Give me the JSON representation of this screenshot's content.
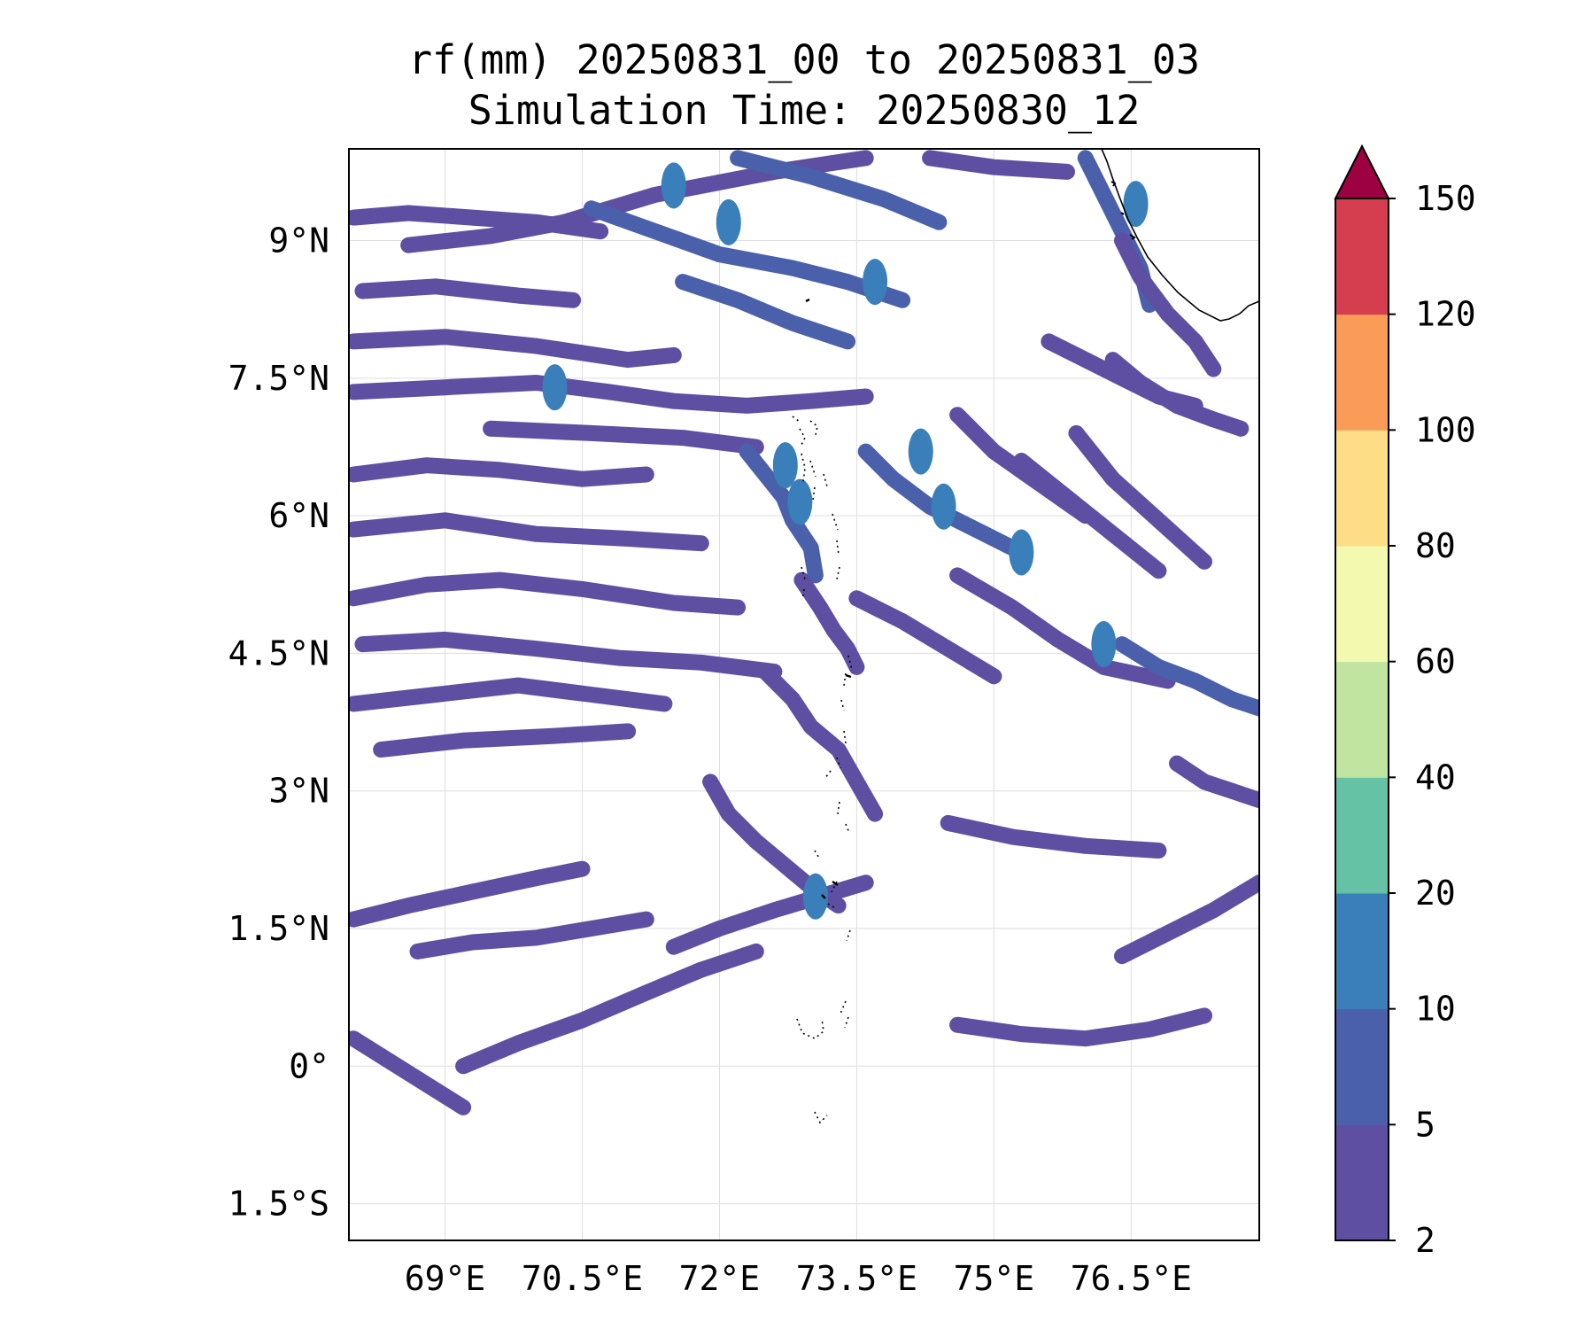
{
  "title": {
    "line1": "rf(mm) 20250831_00 to 20250831_03",
    "line2": "Simulation Time: 20250830_12"
  },
  "map": {
    "projection": "PlateCarree",
    "extent": {
      "lon_min": 67.95,
      "lon_max": 77.9,
      "lat_min": -1.9,
      "lat_max": 10.0
    },
    "gridlines": true,
    "coastline_color": "#000000",
    "x_ticks": [
      {
        "value": 69.0,
        "label": "69°E"
      },
      {
        "value": 70.5,
        "label": "70.5°E"
      },
      {
        "value": 72.0,
        "label": "72°E"
      },
      {
        "value": 73.5,
        "label": "73.5°E"
      },
      {
        "value": 75.0,
        "label": "75°E"
      },
      {
        "value": 76.5,
        "label": "76.5°E"
      }
    ],
    "y_ticks": [
      {
        "value": 9.0,
        "label": "9°N"
      },
      {
        "value": 7.5,
        "label": "7.5°N"
      },
      {
        "value": 6.0,
        "label": "6°N"
      },
      {
        "value": 4.5,
        "label": "4.5°N"
      },
      {
        "value": 3.0,
        "label": "3°N"
      },
      {
        "value": 1.5,
        "label": "1.5°N"
      },
      {
        "value": 0.0,
        "label": "0°"
      },
      {
        "value": -1.5,
        "label": "1.5°S"
      }
    ]
  },
  "chart_data": {
    "type": "heatmap",
    "variable": "rf(mm)",
    "colorbar": {
      "levels": [
        2,
        5,
        10,
        20,
        40,
        60,
        80,
        100,
        120,
        150
      ],
      "labels": [
        "2",
        "5",
        "10",
        "20",
        "40",
        "60",
        "80",
        "100",
        "120",
        "150"
      ],
      "colors": [
        "#5e4fa2",
        "#4a60ab",
        "#3a7fb9",
        "#66c2a5",
        "#bfe5a0",
        "#f3f9ae",
        "#fddd86",
        "#fa9c58",
        "#d53e4f"
      ],
      "extend_color": "#9e0142",
      "extend": "max"
    },
    "rain_streaks": [
      {
        "lon": [
          68.0,
          68.6,
          69.3,
          70.0,
          70.7
        ],
        "lat": [
          9.25,
          9.3,
          9.25,
          9.2,
          9.1
        ],
        "level": 0
      },
      {
        "lon": [
          68.6,
          69.5,
          70.3,
          71.3,
          72.6,
          73.6
        ],
        "lat": [
          8.95,
          9.05,
          9.2,
          9.5,
          9.75,
          9.9
        ],
        "level": 0
      },
      {
        "lon": [
          70.6,
          71.3,
          72.0,
          72.8,
          73.4,
          74.0
        ],
        "lat": [
          9.35,
          9.1,
          8.85,
          8.7,
          8.55,
          8.35
        ],
        "level": 1
      },
      {
        "lon": [
          72.2,
          73.0,
          73.8,
          74.4
        ],
        "lat": [
          9.9,
          9.7,
          9.45,
          9.2
        ],
        "level": 1
      },
      {
        "lon": [
          74.3,
          75.0,
          75.8
        ],
        "lat": [
          9.9,
          9.8,
          9.75
        ],
        "level": 0
      },
      {
        "lon": [
          71.6,
          72.2,
          72.8,
          73.4
        ],
        "lat": [
          8.55,
          8.35,
          8.1,
          7.9
        ],
        "level": 1
      },
      {
        "lon": [
          68.1,
          68.9,
          69.8,
          70.4
        ],
        "lat": [
          8.45,
          8.5,
          8.4,
          8.35
        ],
        "level": 0
      },
      {
        "lon": [
          68.0,
          69.0,
          70.0,
          71.0,
          71.5
        ],
        "lat": [
          7.9,
          7.95,
          7.85,
          7.7,
          7.75
        ],
        "level": 0
      },
      {
        "lon": [
          68.0,
          69.0,
          70.0,
          70.8,
          71.5,
          72.3,
          73.0,
          73.6
        ],
        "lat": [
          7.35,
          7.4,
          7.45,
          7.35,
          7.25,
          7.2,
          7.25,
          7.3
        ],
        "level": 0
      },
      {
        "lon": [
          69.5,
          70.6,
          71.6,
          72.4
        ],
        "lat": [
          6.95,
          6.9,
          6.85,
          6.75
        ],
        "level": 0
      },
      {
        "lon": [
          72.3,
          72.5,
          72.7,
          72.8,
          73.0,
          73.05
        ],
        "lat": [
          6.7,
          6.45,
          6.2,
          5.95,
          5.65,
          5.35
        ],
        "level": 1
      },
      {
        "lon": [
          72.9,
          73.1,
          73.25,
          73.4,
          73.5
        ],
        "lat": [
          5.3,
          5.0,
          4.75,
          4.55,
          4.35
        ],
        "level": 0
      },
      {
        "lon": [
          68.0,
          68.8,
          69.6,
          70.5,
          71.2
        ],
        "lat": [
          6.45,
          6.55,
          6.5,
          6.4,
          6.45
        ],
        "level": 0
      },
      {
        "lon": [
          68.0,
          69.0,
          70.0,
          71.0,
          71.8
        ],
        "lat": [
          5.85,
          5.95,
          5.8,
          5.75,
          5.7
        ],
        "level": 0
      },
      {
        "lon": [
          68.0,
          68.8,
          69.6,
          70.5,
          71.5,
          72.2
        ],
        "lat": [
          5.1,
          5.25,
          5.3,
          5.2,
          5.05,
          5.0
        ],
        "level": 0
      },
      {
        "lon": [
          68.1,
          69.0,
          70.0,
          70.9,
          71.8,
          72.6
        ],
        "lat": [
          4.6,
          4.65,
          4.55,
          4.45,
          4.4,
          4.3
        ],
        "level": 0
      },
      {
        "lon": [
          68.0,
          68.9,
          69.8,
          70.6,
          71.4
        ],
        "lat": [
          3.95,
          4.05,
          4.15,
          4.05,
          3.95
        ],
        "level": 0
      },
      {
        "lon": [
          68.3,
          69.2,
          70.2,
          71.0
        ],
        "lat": [
          3.45,
          3.55,
          3.6,
          3.65
        ],
        "level": 0
      },
      {
        "lon": [
          73.6,
          73.9,
          74.3,
          74.8,
          75.3
        ],
        "lat": [
          6.7,
          6.4,
          6.1,
          5.85,
          5.6
        ],
        "level": 1
      },
      {
        "lon": [
          74.6,
          75.0,
          75.5,
          76.0
        ],
        "lat": [
          7.1,
          6.7,
          6.35,
          6.0
        ],
        "level": 0
      },
      {
        "lon": [
          75.3,
          75.8,
          76.3,
          76.8
        ],
        "lat": [
          6.6,
          6.2,
          5.8,
          5.4
        ],
        "level": 0
      },
      {
        "lon": [
          75.9,
          76.3,
          76.8,
          77.3
        ],
        "lat": [
          6.9,
          6.4,
          5.95,
          5.5
        ],
        "level": 0
      },
      {
        "lon": [
          73.5,
          74.0,
          74.5,
          75.0
        ],
        "lat": [
          5.1,
          4.85,
          4.55,
          4.25
        ],
        "level": 0
      },
      {
        "lon": [
          74.6,
          75.2,
          75.7,
          76.2,
          76.9
        ],
        "lat": [
          5.35,
          5.0,
          4.65,
          4.35,
          4.2
        ],
        "level": 0
      },
      {
        "lon": [
          76.4,
          76.8,
          77.2,
          77.6,
          77.9
        ],
        "lat": [
          4.6,
          4.35,
          4.2,
          4.0,
          3.9
        ],
        "level": 1
      },
      {
        "lon": [
          75.6,
          76.0,
          76.4,
          76.8,
          77.2
        ],
        "lat": [
          7.9,
          7.7,
          7.5,
          7.3,
          7.2
        ],
        "level": 0
      },
      {
        "lon": [
          76.0,
          76.2,
          76.4,
          76.6,
          76.7
        ],
        "lat": [
          9.9,
          9.5,
          9.1,
          8.7,
          8.3
        ],
        "level": 1
      },
      {
        "lon": [
          76.4,
          76.6,
          76.9,
          77.2,
          77.4
        ],
        "lat": [
          9.0,
          8.6,
          8.2,
          7.9,
          7.6
        ],
        "level": 0
      },
      {
        "lon": [
          76.3,
          76.6,
          77.0,
          77.4,
          77.7
        ],
        "lat": [
          7.7,
          7.45,
          7.2,
          7.05,
          6.95
        ],
        "level": 0
      },
      {
        "lon": [
          72.5,
          72.8,
          73.0,
          73.3,
          73.5,
          73.7
        ],
        "lat": [
          4.3,
          4.0,
          3.7,
          3.45,
          3.1,
          2.75
        ],
        "level": 0
      },
      {
        "lon": [
          71.9,
          72.1,
          72.4,
          72.7,
          73.0,
          73.3
        ],
        "lat": [
          3.1,
          2.75,
          2.45,
          2.2,
          1.95,
          1.75
        ],
        "level": 0
      },
      {
        "lon": [
          71.5,
          72.0,
          72.6,
          73.1,
          73.6
        ],
        "lat": [
          1.3,
          1.5,
          1.7,
          1.85,
          2.0
        ],
        "level": 0
      },
      {
        "lon": [
          68.0,
          68.6,
          69.3,
          70.0,
          70.5
        ],
        "lat": [
          1.6,
          1.75,
          1.9,
          2.05,
          2.15
        ],
        "level": 0
      },
      {
        "lon": [
          68.7,
          69.3,
          70.0,
          70.6,
          71.2
        ],
        "lat": [
          1.25,
          1.35,
          1.4,
          1.5,
          1.6
        ],
        "level": 0
      },
      {
        "lon": [
          69.2,
          69.8,
          70.5,
          71.2,
          71.8,
          72.4
        ],
        "lat": [
          0.0,
          0.25,
          0.5,
          0.8,
          1.05,
          1.25
        ],
        "level": 0
      },
      {
        "lon": [
          68.0,
          68.4,
          68.8,
          69.2
        ],
        "lat": [
          0.3,
          0.05,
          -0.2,
          -0.45
        ],
        "level": 0
      },
      {
        "lon": [
          74.6,
          75.3,
          76.0,
          76.7,
          77.3
        ],
        "lat": [
          0.45,
          0.35,
          0.3,
          0.4,
          0.55
        ],
        "level": 0
      },
      {
        "lon": [
          76.4,
          76.9,
          77.4,
          77.9
        ],
        "lat": [
          1.2,
          1.45,
          1.7,
          2.0
        ],
        "level": 0
      },
      {
        "lon": [
          77.0,
          77.3,
          77.6,
          77.9
        ],
        "lat": [
          3.3,
          3.1,
          3.0,
          2.9
        ],
        "level": 0
      },
      {
        "lon": [
          74.5,
          75.2,
          76.0,
          76.8
        ],
        "lat": [
          2.65,
          2.5,
          2.4,
          2.35
        ],
        "level": 0
      }
    ],
    "rain_blobs": [
      {
        "lon": 72.72,
        "lat": 6.55,
        "level": 2
      },
      {
        "lon": 72.88,
        "lat": 6.15,
        "level": 2
      },
      {
        "lon": 74.2,
        "lat": 6.7,
        "level": 2
      },
      {
        "lon": 74.45,
        "lat": 6.1,
        "level": 2
      },
      {
        "lon": 72.1,
        "lat": 9.2,
        "level": 2
      },
      {
        "lon": 71.5,
        "lat": 9.6,
        "level": 2
      },
      {
        "lon": 73.05,
        "lat": 1.85,
        "level": 2
      },
      {
        "lon": 76.55,
        "lat": 9.4,
        "level": 2
      },
      {
        "lon": 76.2,
        "lat": 4.6,
        "level": 2
      },
      {
        "lon": 70.2,
        "lat": 7.4,
        "level": 2
      },
      {
        "lon": 73.7,
        "lat": 8.55,
        "level": 2
      },
      {
        "lon": 75.3,
        "lat": 5.6,
        "level": 2
      }
    ]
  }
}
